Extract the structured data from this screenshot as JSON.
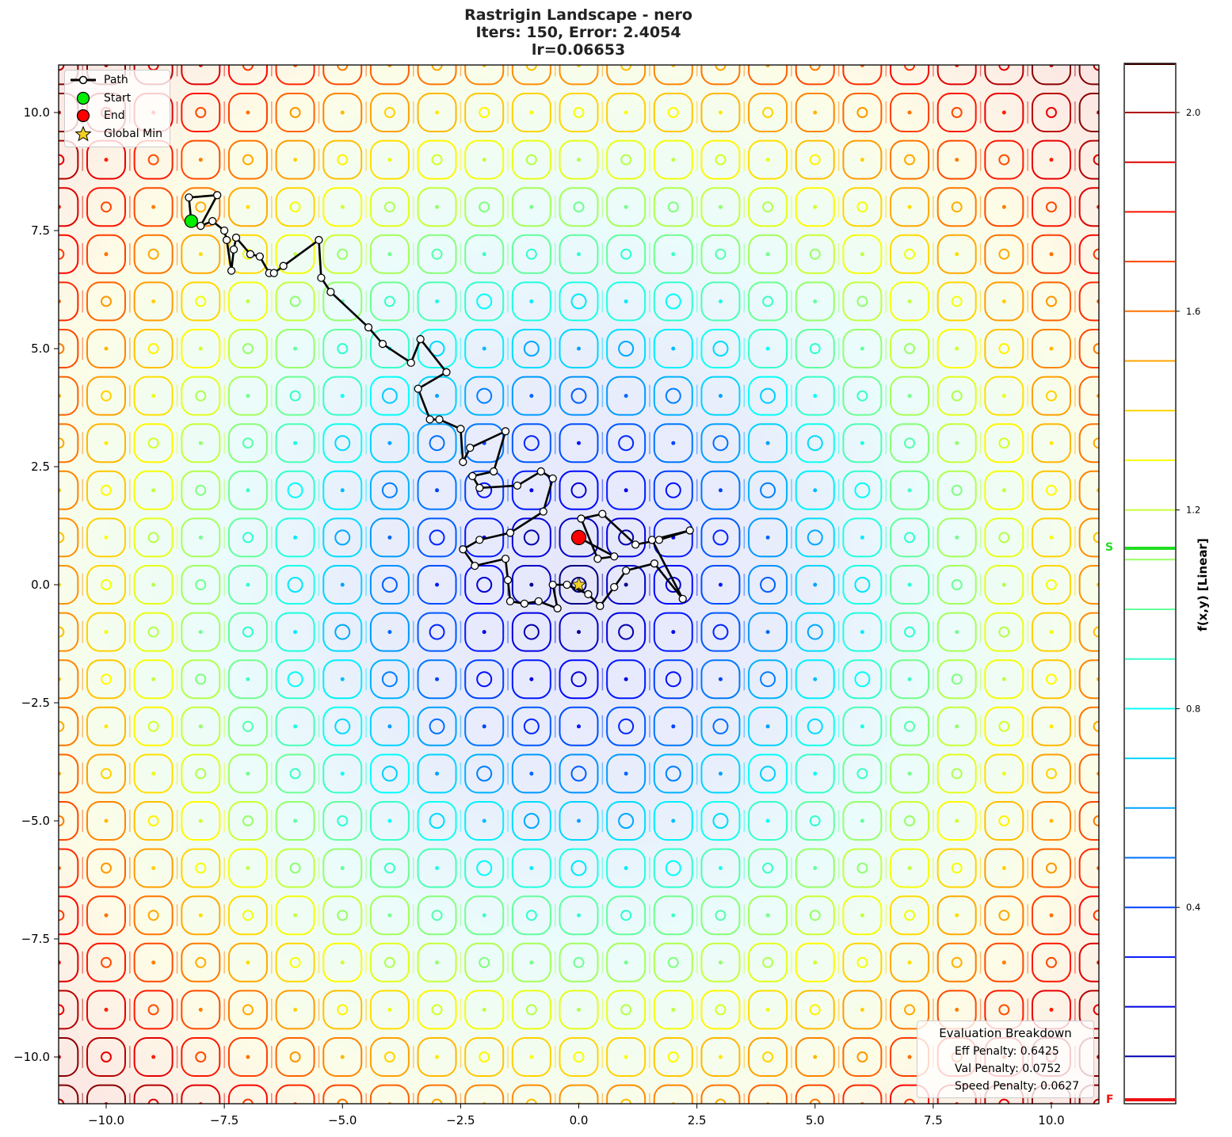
{
  "title": {
    "line1": "Rastrigin Landscape - nero",
    "line2": "Iters: 150, Error: 2.4054",
    "line3": "lr=0.06653"
  },
  "legend": {
    "items": [
      {
        "label": "Path",
        "marker": "line-with-white-circle",
        "color": "#000000"
      },
      {
        "label": "Start",
        "marker": "circle",
        "color": "#00ee00"
      },
      {
        "label": "End",
        "marker": "circle",
        "color": "#ff0000"
      },
      {
        "label": "Global Min",
        "marker": "star",
        "color": "#f5d020"
      }
    ]
  },
  "evaluation": {
    "title": "Evaluation Breakdown",
    "eff_penalty": "Eff Penalty: 0.6425",
    "val_penalty": "Val Penalty: 0.0752",
    "speed_penalty": "Speed Penalty: 0.0627"
  },
  "colorbar": {
    "label": "f(x,y) [Linear]",
    "ticks": [
      "2.0",
      "1.6",
      "1.2",
      "0.8",
      "0.4"
    ],
    "start_marker": "S",
    "final_marker": "F",
    "start_color": "#22dd22",
    "final_color": "#ee1111"
  },
  "axes": {
    "xticks": [
      "−10.0",
      "−7.5",
      "−5.0",
      "−2.5",
      "0.0",
      "2.5",
      "5.0",
      "7.5",
      "10.0"
    ],
    "yticks": [
      "10.0",
      "7.5",
      "5.0",
      "2.5",
      "0.0",
      "−2.5",
      "−5.0",
      "−7.5",
      "−10.0"
    ]
  },
  "chart_data": {
    "type": "contour",
    "title": "Rastrigin Landscape - nero\nIters: 150, Error: 2.4054\nlr=0.06653",
    "xlabel": "",
    "ylabel": "",
    "xlim": [
      -11,
      11
    ],
    "ylim": [
      -11,
      11
    ],
    "xticks": [
      -10.0,
      -7.5,
      -5.0,
      -2.5,
      0.0,
      2.5,
      5.0,
      7.5,
      10.0
    ],
    "yticks": [
      -10.0,
      -7.5,
      -5.0,
      -2.5,
      0.0,
      2.5,
      5.0,
      7.5,
      10.0
    ],
    "colorbar": {
      "label": "f(x,y) [Linear]",
      "ticks": [
        0.4,
        0.8,
        1.2,
        1.6,
        2.0
      ],
      "range": [
        0.0,
        2.1
      ],
      "colormap": "jet",
      "start_level": 1.12,
      "final_level": 0.01
    },
    "legend": [
      "Path",
      "Start",
      "End",
      "Global Min"
    ],
    "legend_position": "upper left",
    "points": {
      "start": [
        -8.2,
        7.7
      ],
      "end": [
        0.0,
        1.0
      ],
      "global_min": [
        0.0,
        0.0
      ]
    },
    "path_sample": [
      [
        -8.2,
        7.7
      ],
      [
        -8.25,
        8.2
      ],
      [
        -7.65,
        8.25
      ],
      [
        -8.0,
        7.6
      ],
      [
        -7.75,
        7.7
      ],
      [
        -7.5,
        7.5
      ],
      [
        -7.45,
        7.3
      ],
      [
        -7.35,
        6.65
      ],
      [
        -7.3,
        7.1
      ],
      [
        -7.25,
        7.35
      ],
      [
        -6.95,
        7.0
      ],
      [
        -6.75,
        6.95
      ],
      [
        -6.55,
        6.6
      ],
      [
        -6.45,
        6.6
      ],
      [
        -6.25,
        6.75
      ],
      [
        -5.5,
        7.3
      ],
      [
        -5.45,
        6.5
      ],
      [
        -5.25,
        6.2
      ],
      [
        -4.45,
        5.45
      ],
      [
        -4.15,
        5.1
      ],
      [
        -3.55,
        4.7
      ],
      [
        -3.35,
        5.2
      ],
      [
        -2.8,
        4.5
      ],
      [
        -3.4,
        4.15
      ],
      [
        -3.15,
        3.5
      ],
      [
        -2.95,
        3.5
      ],
      [
        -2.5,
        3.3
      ],
      [
        -2.45,
        2.6
      ],
      [
        -2.3,
        2.9
      ],
      [
        -1.55,
        3.25
      ],
      [
        -1.8,
        2.4
      ],
      [
        -2.25,
        2.3
      ],
      [
        -2.1,
        2.05
      ],
      [
        -1.3,
        2.1
      ],
      [
        -0.8,
        2.4
      ],
      [
        -0.55,
        2.25
      ],
      [
        -0.75,
        1.55
      ],
      [
        -1.45,
        1.1
      ],
      [
        -2.1,
        0.95
      ],
      [
        -2.45,
        0.75
      ],
      [
        -2.2,
        0.4
      ],
      [
        -1.55,
        0.55
      ],
      [
        -1.5,
        0.1
      ],
      [
        -1.45,
        -0.35
      ],
      [
        -1.15,
        -0.4
      ],
      [
        -0.85,
        -0.35
      ],
      [
        -0.45,
        -0.5
      ],
      [
        -0.55,
        0.0
      ],
      [
        -0.25,
        0.0
      ],
      [
        0.2,
        -0.2
      ],
      [
        0.45,
        -0.45
      ],
      [
        0.75,
        -0.05
      ],
      [
        1.0,
        0.3
      ],
      [
        1.6,
        0.45
      ],
      [
        2.2,
        -0.3
      ],
      [
        1.55,
        0.95
      ],
      [
        2.35,
        1.15
      ],
      [
        1.7,
        0.95
      ],
      [
        1.2,
        0.85
      ],
      [
        0.5,
        1.5
      ],
      [
        0.05,
        1.4
      ],
      [
        0.4,
        0.55
      ],
      [
        0.75,
        0.6
      ],
      [
        0.0,
        1.0
      ]
    ]
  }
}
